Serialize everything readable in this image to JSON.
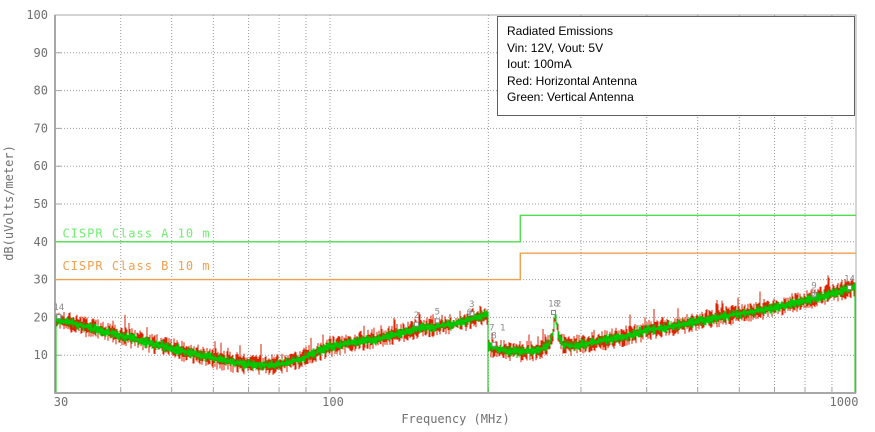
{
  "legend": {
    "lines": [
      "Radiated Emissions",
      "Vin: 12V, Vout: 5V",
      "Iout: 100mA",
      "Red: Horizontal Antenna",
      "Green: Vertical Antenna"
    ]
  },
  "chart_data": {
    "type": "line",
    "title": "Radiated Emissions",
    "xlabel": "Frequency (MHz)",
    "ylabel": "dB(uVolts/meter)",
    "x_scale": "log",
    "xlim": [
      30,
      1000
    ],
    "ylim": [
      0,
      100
    ],
    "y_tick_step": 10,
    "y_tick_labels": [
      "10",
      "20",
      "30",
      "40",
      "50",
      "60",
      "70",
      "80",
      "90",
      "100"
    ],
    "x_tick_labels": [
      "30",
      "100",
      "1000"
    ],
    "x_tick_values": [
      30,
      100,
      1000
    ],
    "x_gridlines": [
      40,
      50,
      60,
      70,
      80,
      90,
      100,
      200,
      300,
      400,
      500,
      600,
      700,
      800,
      900
    ],
    "grid_on": true,
    "grid_color": "#9a9a9a",
    "axis_color": "#a8a8a8",
    "tick_text_color": "#707070",
    "band_break_mhz": 200,
    "series": [
      {
        "name": "Horizontal Antenna",
        "color": "#dd2200",
        "noise_half_db": 2.3,
        "spike_prob": 0.07,
        "spike_db": 2.2
      },
      {
        "name": "Vertical Antenna",
        "color": "#00c800",
        "noise_half_db": 1.2,
        "spike_prob": 0.02,
        "spike_db": 0.8
      }
    ],
    "envelope_db": {
      "band1": [
        [
          30,
          19.5
        ],
        [
          33,
          18.2
        ],
        [
          36,
          16.8
        ],
        [
          40,
          15.2
        ],
        [
          45,
          13.4
        ],
        [
          50,
          11.9
        ],
        [
          55,
          10.4
        ],
        [
          60,
          9.2
        ],
        [
          65,
          8.2
        ],
        [
          70,
          7.6
        ],
        [
          75,
          7.4
        ],
        [
          80,
          7.6
        ],
        [
          85,
          8.3
        ],
        [
          90,
          9.6
        ],
        [
          95,
          11.0
        ],
        [
          100,
          12.3
        ],
        [
          110,
          13.3
        ],
        [
          120,
          14.1
        ],
        [
          130,
          15.0
        ],
        [
          140,
          16.2
        ],
        [
          148,
          17.4
        ],
        [
          156,
          17.2
        ],
        [
          164,
          18.0
        ],
        [
          172,
          18.2
        ],
        [
          180,
          19.0
        ],
        [
          190,
          20.2
        ],
        [
          200,
          20.8
        ]
      ],
      "band2": [
        [
          200,
          12.4
        ],
        [
          208,
          11.6
        ],
        [
          218,
          11.1
        ],
        [
          230,
          10.9
        ],
        [
          242,
          11.1
        ],
        [
          254,
          11.9
        ],
        [
          262,
          13.2
        ],
        [
          266,
          16.5
        ],
        [
          268,
          21.2
        ],
        [
          271,
          15.8
        ],
        [
          277,
          13.0
        ],
        [
          288,
          12.4
        ],
        [
          300,
          12.9
        ],
        [
          320,
          13.5
        ],
        [
          345,
          14.4
        ],
        [
          370,
          15.2
        ],
        [
          400,
          16.6
        ],
        [
          430,
          17.3
        ],
        [
          460,
          17.9
        ],
        [
          500,
          19.0
        ],
        [
          540,
          19.8
        ],
        [
          580,
          20.6
        ],
        [
          620,
          21.3
        ],
        [
          660,
          22.0
        ],
        [
          700,
          22.6
        ],
        [
          740,
          23.3
        ],
        [
          780,
          24.1
        ],
        [
          820,
          24.9
        ],
        [
          850,
          25.3
        ],
        [
          880,
          25.9
        ],
        [
          910,
          26.5
        ],
        [
          940,
          27.1
        ],
        [
          970,
          27.7
        ],
        [
          1000,
          28.3
        ]
      ]
    },
    "limits": [
      {
        "name": "CISPR Class A 10 m",
        "line_color": "#4ce04c",
        "label_color": "#70ee70",
        "low_db": 40,
        "high_db": 47,
        "step_mhz": 230,
        "label_at": {
          "mhz": 31.0,
          "db": 41.2
        }
      },
      {
        "name": "CISPR Class B 10 m",
        "line_color": "#f0a050",
        "label_color": "#f0a050",
        "low_db": 30,
        "high_db": 37,
        "step_mhz": 230,
        "label_at": {
          "mhz": 31.0,
          "db": 32.6
        }
      }
    ],
    "markers": [
      {
        "label": "14",
        "mhz": 30.5,
        "db": 21.9,
        "square_db": 20.2
      },
      {
        "label": "2",
        "mhz": 146,
        "db": 19.8,
        "square_db": 18.2
      },
      {
        "label": "5",
        "mhz": 160,
        "db": 20.8,
        "square_db": 19.1
      },
      {
        "label": "3",
        "mhz": 186,
        "db": 22.7,
        "square_db": 21.0
      },
      {
        "label": "6",
        "mhz": 184,
        "db": 20.6,
        "square_db": null
      },
      {
        "label": "7 1",
        "mhz": 208,
        "db": 16.6,
        "square_db": null
      },
      {
        "label": "8",
        "mhz": 205,
        "db": 14.4,
        "square_db": 12.9
      },
      {
        "label": "18",
        "mhz": 266,
        "db": 22.9,
        "square_db": 21.3
      },
      {
        "label": "2",
        "mhz": 272,
        "db": 22.9,
        "square_db": null
      },
      {
        "label": "9",
        "mhz": 832,
        "db": 27.7,
        "square_db": 26.0
      },
      {
        "label": "8",
        "mhz": 828,
        "db": 25.7,
        "square_db": null
      },
      {
        "label": "14",
        "mhz": 972,
        "db": 29.5,
        "square_db": 27.9
      }
    ]
  }
}
